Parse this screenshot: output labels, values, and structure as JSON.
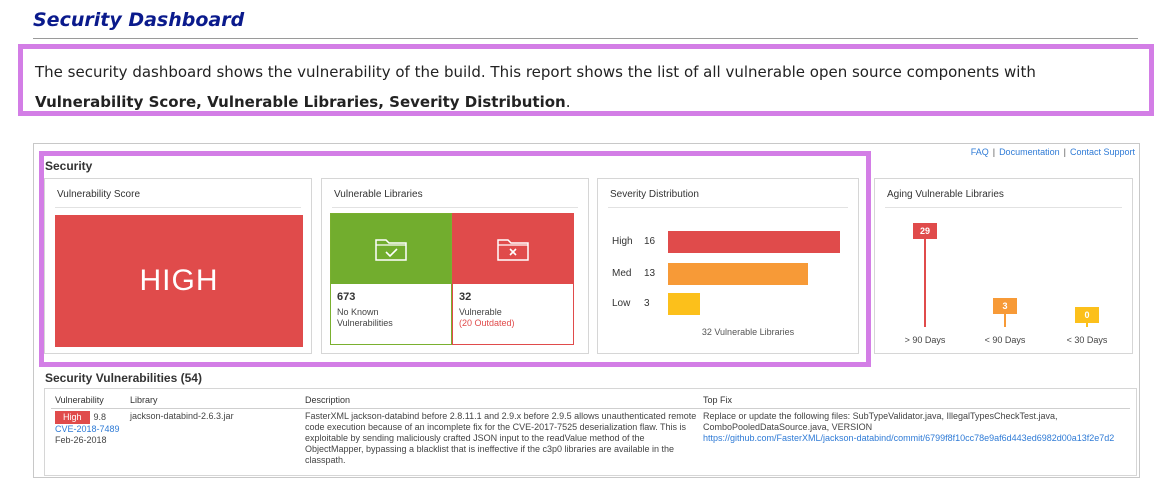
{
  "doc": {
    "title": "Security Dashboard",
    "intro_text": "The security dashboard shows the vulnerability of the build. This report shows the list of all vulnerable open source components with ",
    "intro_bold": "Vulnerability Score, Vulnerable Libraries, Severity Distribution",
    "intro_end": "."
  },
  "header": {
    "links": [
      "FAQ",
      "Documentation",
      "Contact Support"
    ],
    "separator": "|"
  },
  "section": {
    "title": "Security"
  },
  "score_card": {
    "title": "Vulnerability Score",
    "value": "HIGH",
    "color": "#e04b4b"
  },
  "libraries_card": {
    "title": "Vulnerable Libraries",
    "ok": {
      "icon": "folder-check-icon",
      "count": "673",
      "label_line1": "No Known",
      "label_line2": "Vulnerabilities",
      "color": "#72ad2e"
    },
    "bad": {
      "icon": "folder-x-icon",
      "count": "32",
      "label_line1": "Vulnerable",
      "label_line2": "(20 Outdated)",
      "color": "#e04b4b"
    }
  },
  "severity_card": {
    "title": "Severity Distribution",
    "rows": [
      {
        "label": "High",
        "count": "16",
        "value": 16,
        "color": "#e04b4b"
      },
      {
        "label": "Med",
        "count": "13",
        "value": 13,
        "color": "#f79a37"
      },
      {
        "label": "Low",
        "count": "3",
        "value": 3,
        "color": "#fcc01b"
      }
    ],
    "max": 16,
    "footer": "32 Vulnerable Libraries"
  },
  "aging_card": {
    "title": "Aging Vulnerable Libraries",
    "max": 29,
    "columns": [
      {
        "label": "> 90 Days",
        "count": "29",
        "value": 29,
        "color": "#e04b4b"
      },
      {
        "label": "< 90 Days",
        "count": "3",
        "value": 3,
        "color": "#f79a37"
      },
      {
        "label": "< 30 Days",
        "count": "0",
        "value": 0,
        "color": "#fcc01b"
      }
    ]
  },
  "vulnerabilities": {
    "title": "Security Vulnerabilities (54)",
    "headers": [
      "Vulnerability",
      "Library",
      "Description",
      "Top Fix"
    ],
    "rows": [
      {
        "severity": "High",
        "score": "9.8",
        "cve": "CVE-2018-7489",
        "date": "Feb-26-2018",
        "library": "jackson-databind-2.6.3.jar",
        "description_lines": [
          "FasterXML jackson-databind before 2.8.11.1 and 2.9.x before 2.9.5 allows unauthenticated remote",
          "code execution because of an incomplete fix for the CVE-2017-7525 deserialization flaw. This is",
          "exploitable by sending maliciously crafted JSON input to the readValue method of the",
          "ObjectMapper, bypassing a blacklist that is ineffective if the c3p0 libraries are available in the",
          "classpath."
        ],
        "fix_lines": [
          "Replace or update the following files: SubTypeValidator.java, IllegalTypesCheckTest.java,",
          "ComboPooledDataSource.java, VERSION"
        ],
        "fix_link": "https://github.com/FasterXML/jackson-databind/commit/6799f8f10cc78e9af6d443ed6982d00a13f2e7d2"
      }
    ]
  }
}
